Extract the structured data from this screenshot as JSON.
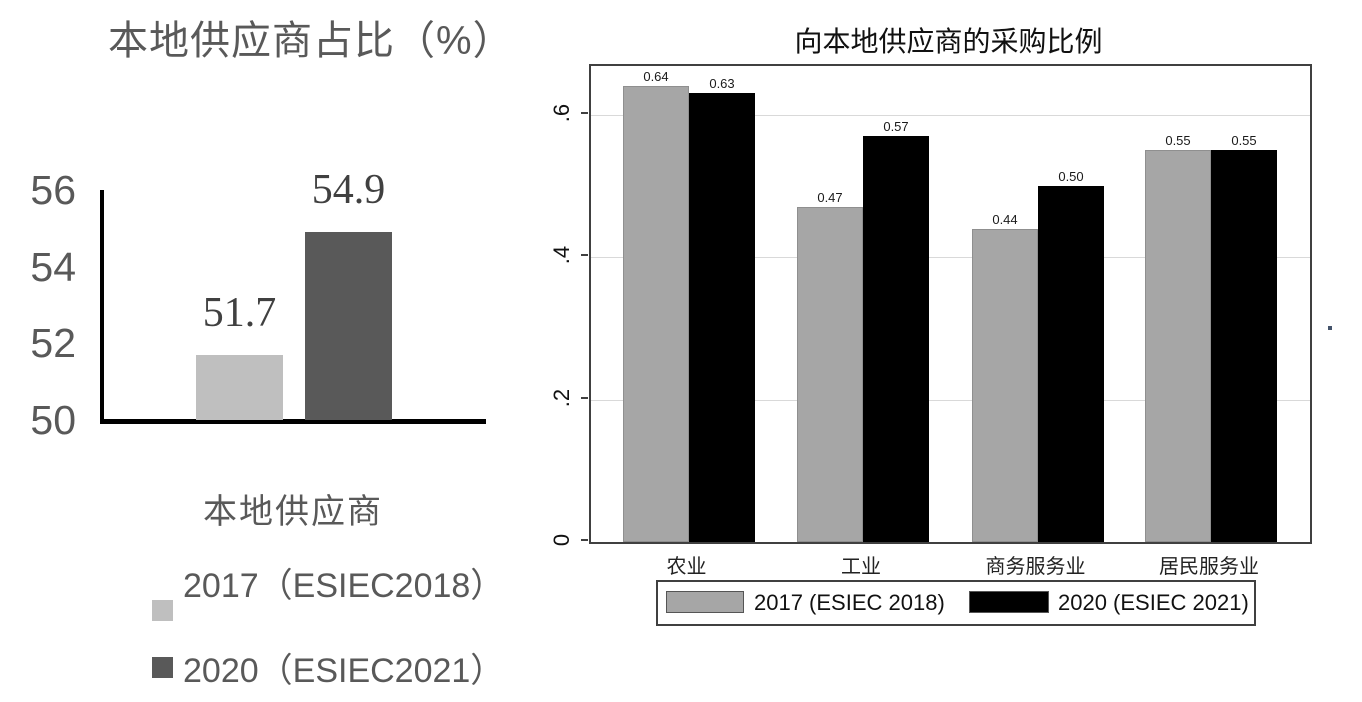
{
  "page": {
    "background": "#ffffff"
  },
  "chart_data": [
    {
      "type": "bar",
      "title": "本地供应商占比（%）",
      "xlabel": "本地供应商",
      "ylabel": "",
      "categories": [
        "本地供应商"
      ],
      "series": [
        {
          "name": "2017（ESIEC2018）",
          "values": [
            51.7
          ],
          "color": "#bfbfbf"
        },
        {
          "name": "2020（ESIEC2021）",
          "values": [
            54.9
          ],
          "color": "#595959"
        }
      ],
      "data_labels": [
        "51.7",
        "54.9"
      ],
      "y_ticks": [
        50,
        52,
        54,
        56
      ],
      "y_tick_labels": [
        "50",
        "52",
        "54",
        "56"
      ],
      "ylim": [
        50,
        56
      ],
      "grid": false,
      "legend_position": "bottom-left",
      "text_color": "#595959",
      "axis_color": "#000000"
    },
    {
      "type": "bar",
      "title": "向本地供应商的采购比例",
      "xlabel": "",
      "ylabel": "",
      "categories": [
        "农业",
        "工业",
        "商务服务业",
        "居民服务业"
      ],
      "series": [
        {
          "name": "2017 (ESIEC 2018)",
          "values": [
            0.64,
            0.47,
            0.44,
            0.55
          ],
          "color": "#a6a6a6"
        },
        {
          "name": "2020 (ESIEC 2021)",
          "values": [
            0.63,
            0.57,
            0.5,
            0.55
          ],
          "color": "#000000"
        }
      ],
      "data_labels": [
        [
          "0.64",
          "0.63"
        ],
        [
          "0.47",
          "0.57"
        ],
        [
          "0.44",
          "0.50"
        ],
        [
          "0.55",
          "0.55"
        ]
      ],
      "y_ticks": [
        0,
        0.2,
        0.4,
        0.6
      ],
      "y_tick_labels": [
        "0",
        ".2",
        ".4",
        ".6"
      ],
      "ylim": [
        0,
        0.668
      ],
      "grid": true,
      "gridline_color": "#d9d9d9",
      "legend_position": "bottom",
      "frame": true,
      "text_color": "#111111"
    }
  ]
}
